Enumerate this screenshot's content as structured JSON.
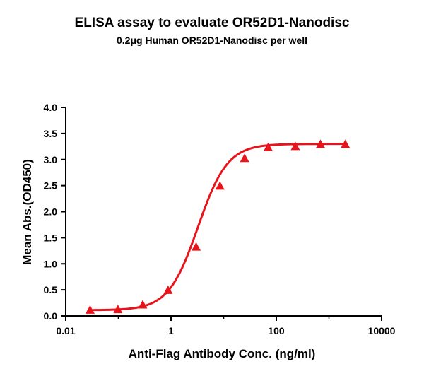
{
  "chart_data": {
    "type": "scatter",
    "title": "ELISA assay to evaluate OR52D1-Nanodisc",
    "subtitle": "0.2μg Human OR52D1-Nanodisc per well",
    "xlabel": "Anti-Flag Antibody Conc. (ng/ml)",
    "ylabel": "Mean Abs.(OD450)",
    "xscale": "log",
    "xlim": [
      0.01,
      10000
    ],
    "ylim": [
      0,
      4.0
    ],
    "x_ticks": [
      0.01,
      1,
      100,
      10000
    ],
    "x_tick_labels": [
      "0.01",
      "1",
      "100",
      "10000"
    ],
    "y_ticks": [
      0,
      0.5,
      1.0,
      1.5,
      2.0,
      2.5,
      3.0,
      3.5,
      4.0
    ],
    "y_tick_labels": [
      "0.0",
      "0.5",
      "1.0",
      "1.5",
      "2.0",
      "2.5",
      "3.0",
      "3.5",
      "4.0"
    ],
    "grid": false,
    "series": [
      {
        "color": "#e8141b",
        "marker": "triangle",
        "fit": "four-parameter logistic",
        "x": [
          0.029,
          0.098,
          0.29,
          0.88,
          3.0,
          8.5,
          25,
          70,
          230,
          690,
          2050
        ],
        "y": [
          0.11,
          0.12,
          0.21,
          0.49,
          1.32,
          2.49,
          3.02,
          3.23,
          3.25,
          3.29,
          3.29
        ]
      }
    ]
  }
}
